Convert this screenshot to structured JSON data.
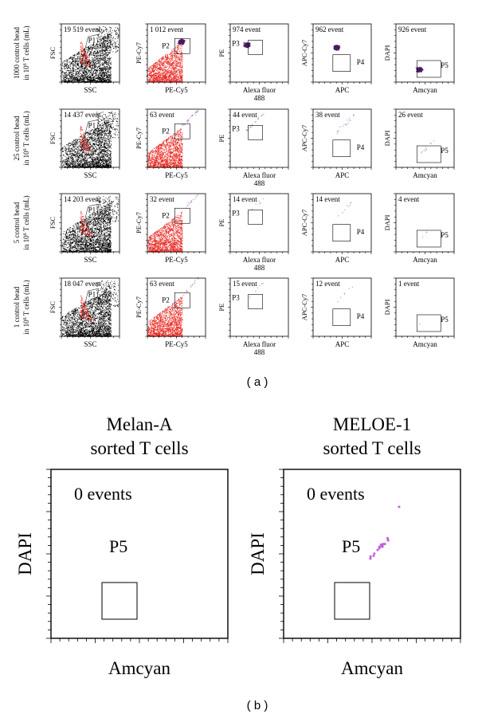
{
  "figure": {
    "panel_a_label": "( a )",
    "panel_b_label": "( b )"
  },
  "chart_data": [
    {
      "type": "scatter",
      "panel": "a",
      "description_rows": [
        "1000 control bead in 10^6 T cells (mL)",
        "25 control bead in 10^6 T cells (mL)",
        "5 control bead in 10^6 T cells (mL)",
        "1 control bead in 10^6 T cells (mL)"
      ],
      "row_labels": [
        {
          "line1": "1000 control bead",
          "line2_pre": "in 10",
          "sup": "6",
          "line2_post": " T cells (mL)"
        },
        {
          "line1": "25 control bead",
          "line2_pre": "in 10",
          "sup": "6",
          "line2_post": " T cells (mL)"
        },
        {
          "line1": "5 control bead",
          "line2_pre": "in 10",
          "sup": "6",
          "line2_post": " T cells (mL)"
        },
        {
          "line1": "1 control bead",
          "line2_pre": "in 10",
          "sup": "6",
          "line2_post": " T cells (mL)"
        }
      ],
      "columns": [
        {
          "xlabel": "SSC",
          "ylabel": "FSC",
          "gate": "P1"
        },
        {
          "xlabel": "PE-Cy5",
          "ylabel": "PE-Cy7",
          "gate": "P2"
        },
        {
          "xlabel": "Alexa fluor 488",
          "xlabel_line1": "Alexa fluor",
          "xlabel_line2": "488",
          "ylabel": "PE",
          "gate": "P3"
        },
        {
          "xlabel": "APC",
          "ylabel": "APC-Cy7",
          "gate": "P4"
        },
        {
          "xlabel": "Amcyan",
          "ylabel": "DAPI",
          "gate": "P5"
        }
      ],
      "events": [
        [
          "19 519 event",
          "1 012 event",
          "974 event",
          "962 event",
          "926 event"
        ],
        [
          "14 437 event",
          "63 event",
          "44 event",
          "38 event",
          "26 event"
        ],
        [
          "14 203 event",
          "32 event",
          "14 event",
          "14 event",
          "4 event"
        ],
        [
          "18 047 event",
          "63 event",
          "15 event",
          "12 event",
          "1 event"
        ]
      ],
      "point_colors": {
        "ungated": "#000000",
        "gated": "#e8231c",
        "beads": "#4a1a5e",
        "sparse": "#b070c8"
      }
    },
    {
      "type": "scatter",
      "panel": "b",
      "plots": [
        {
          "title_line1": "Melan-A",
          "title_line2": "sorted T cells",
          "events": "0 events",
          "gate": "P5",
          "xlabel": "Amcyan",
          "ylabel": "DAPI"
        },
        {
          "title_line1": "MELOE-1",
          "title_line2": "sorted T cells",
          "events": "0 events",
          "gate": "P5",
          "xlabel": "Amcyan",
          "ylabel": "DAPI"
        }
      ],
      "point_color": "#c060d8"
    }
  ]
}
